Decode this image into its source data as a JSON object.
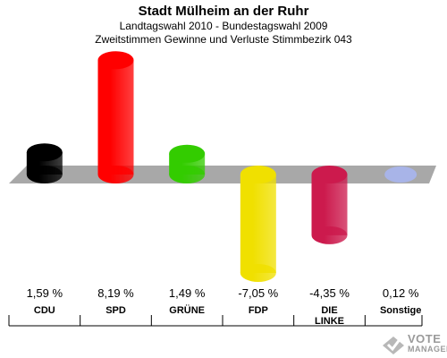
{
  "header": {
    "title": "Stadt Mülheim an der Ruhr",
    "subtitle1": "Landtagswahl 2010 - Bundestagswahl 2009",
    "subtitle2": "Zweitstimmen Gewinne und Verluste Stimmbezirk 043"
  },
  "chart_data": {
    "type": "bar",
    "title": "Stadt Mülheim an der Ruhr",
    "subtitle": "Landtagswahl 2010 - Bundestagswahl 2009 / Zweitstimmen Gewinne und Verluste Stimmbezirk 043",
    "categories": [
      "CDU",
      "SPD",
      "GRÜNE",
      "FDP",
      "DIE LINKE",
      "Sonstige"
    ],
    "category_lines": [
      [
        "CDU"
      ],
      [
        "SPD"
      ],
      [
        "GRÜNE"
      ],
      [
        "FDP"
      ],
      [
        "DIE",
        "LINKE"
      ],
      [
        "Sonstige"
      ]
    ],
    "values": [
      1.59,
      8.19,
      1.49,
      -7.05,
      -4.35,
      0.12
    ],
    "value_labels": [
      "1,59 %",
      "8,19 %",
      "1,49 %",
      "-7,05 %",
      "-4,35 %",
      "0,12 %"
    ],
    "colors": [
      "#000000",
      "#ff0000",
      "#33cc00",
      "#f0e000",
      "#cc1a4d",
      "#a8b4e8"
    ],
    "ylim": [
      -8.5,
      9.5
    ],
    "grid": false,
    "legend": "none"
  },
  "logo": {
    "line1": "VOTE",
    "line2": "MANAGER"
  }
}
